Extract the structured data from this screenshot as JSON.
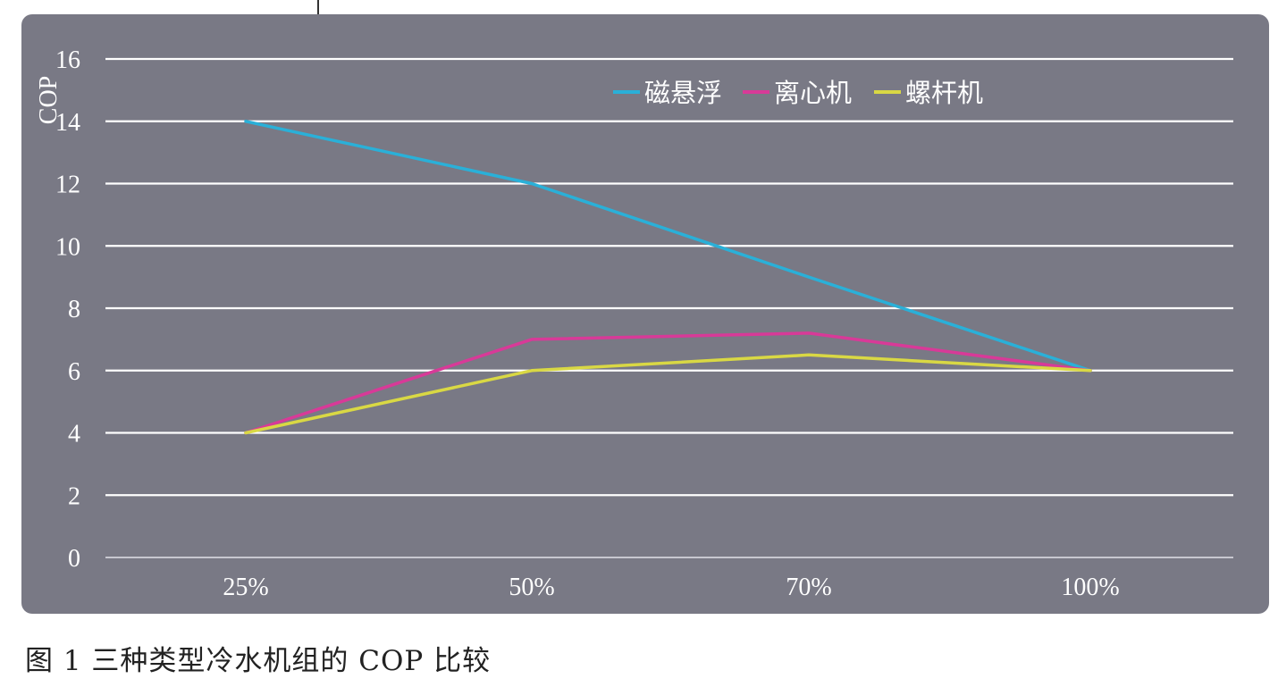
{
  "caption": "图 1  三种类型冷水机组的 COP 比较",
  "colors": {
    "panel": "#797985",
    "grid": "#ffffff",
    "axis": "#c8c8d0",
    "text": "#ffffff"
  },
  "chart_data": {
    "type": "line",
    "title": "",
    "xlabel": "",
    "ylabel": "COP",
    "categories": [
      "25%",
      "50%",
      "70%",
      "100%"
    ],
    "ylim": [
      0,
      16
    ],
    "yticks": [
      0,
      2,
      4,
      6,
      8,
      10,
      12,
      14,
      16
    ],
    "grid": true,
    "legend_position": "top-right",
    "series": [
      {
        "name": "磁悬浮",
        "color": "#2ab0d8",
        "values": [
          14,
          12,
          9,
          6
        ]
      },
      {
        "name": "离心机",
        "color": "#d83a98",
        "values": [
          4,
          7,
          7.2,
          6
        ]
      },
      {
        "name": "螺杆机",
        "color": "#d9d844",
        "values": [
          4,
          6,
          6.5,
          6
        ]
      }
    ]
  }
}
